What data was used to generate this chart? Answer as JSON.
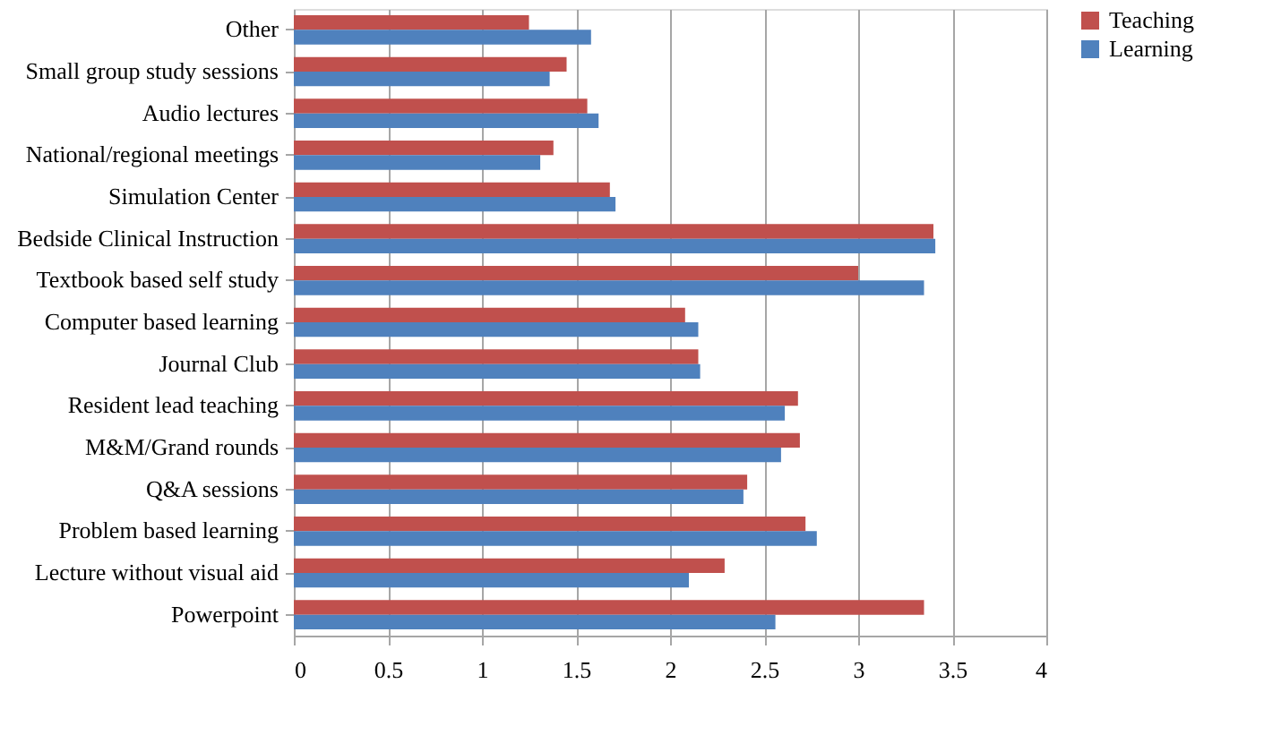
{
  "chart_data": {
    "type": "bar",
    "orientation": "horizontal",
    "categories": [
      "Other",
      "Small group study sessions",
      "Audio lectures",
      "National/regional  meetings",
      "Simulation  Center",
      "Bedside Clinical  Instruction",
      "Textbook based self study",
      "Computer based learning",
      "Journal Club",
      "Resident lead teaching",
      "M&M/Grand rounds",
      "Q&A sessions",
      "Problem based learning",
      "Lecture without visual aid",
      "Powerpoint"
    ],
    "series": [
      {
        "name": "Teaching",
        "color": "#c0504d",
        "values": [
          1.25,
          1.45,
          1.56,
          1.38,
          1.68,
          3.4,
          3.0,
          2.08,
          2.15,
          2.68,
          2.69,
          2.41,
          2.72,
          2.29,
          3.35
        ]
      },
      {
        "name": "Learning",
        "color": "#4f81bd",
        "values": [
          1.58,
          1.36,
          1.62,
          1.31,
          1.71,
          3.41,
          3.35,
          2.15,
          2.16,
          2.61,
          2.59,
          2.39,
          2.78,
          2.1,
          2.56
        ]
      }
    ],
    "xlim": [
      0,
      4
    ],
    "xticks": [
      0,
      0.5,
      1,
      1.5,
      2,
      2.5,
      3,
      3.5,
      4
    ],
    "grid": "x",
    "legend": "right"
  }
}
